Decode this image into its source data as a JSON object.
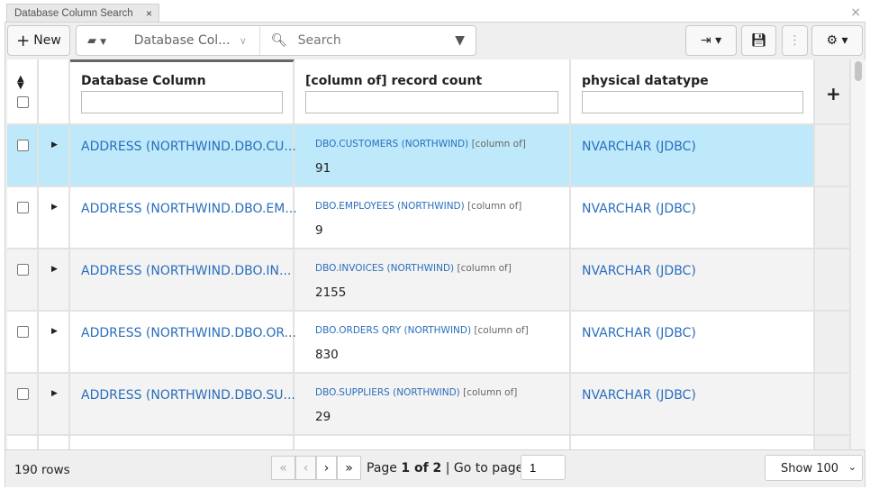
{
  "tab": {
    "title": "Database Column Search",
    "close": "×"
  },
  "window": {
    "close": "×"
  },
  "toolbar": {
    "new_label": "New",
    "view_select": "Database Col...",
    "search_placeholder": "Search"
  },
  "grid": {
    "columns": [
      "Database Column",
      "[column of] record count",
      "physical datatype"
    ],
    "selected_row_color": "#bde9fb",
    "rows": [
      {
        "name": "ADDRESS (NORTHWIND.DBO.CU...",
        "parent": "DBO.CUSTOMERS (NORTHWIND)",
        "tag": "[column of]",
        "count": "91",
        "type": "NVARCHAR (JDBC)"
      },
      {
        "name": "ADDRESS (NORTHWIND.DBO.EM...",
        "parent": "DBO.EMPLOYEES (NORTHWIND)",
        "tag": "[column of]",
        "count": "9",
        "type": "NVARCHAR (JDBC)"
      },
      {
        "name": "ADDRESS (NORTHWIND.DBO.IN...",
        "parent": "DBO.INVOICES (NORTHWIND)",
        "tag": "[column of]",
        "count": "2155",
        "type": "NVARCHAR (JDBC)"
      },
      {
        "name": "ADDRESS (NORTHWIND.DBO.OR...",
        "parent": "DBO.ORDERS QRY (NORTHWIND)",
        "tag": "[column of]",
        "count": "830",
        "type": "NVARCHAR (JDBC)"
      },
      {
        "name": "ADDRESS (NORTHWIND.DBO.SU...",
        "parent": "DBO.SUPPLIERS (NORTHWIND)",
        "tag": "[column of]",
        "count": "29",
        "type": "NVARCHAR (JDBC)"
      }
    ]
  },
  "footer": {
    "row_count": "190 rows",
    "page_prefix": "Page",
    "page_info": "1 of 2",
    "goto_label": "| Go to page:",
    "goto_value": "1",
    "page_size": "Show 100"
  }
}
